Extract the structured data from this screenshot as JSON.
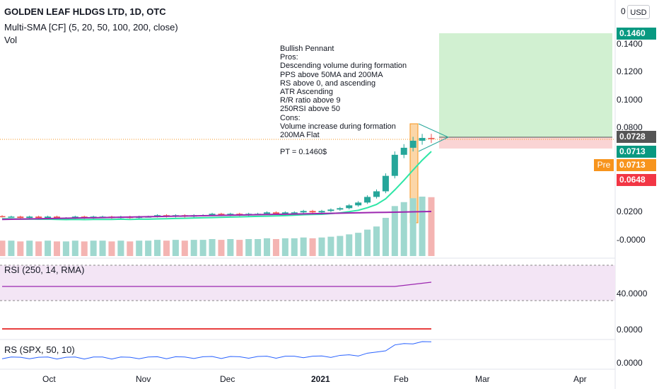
{
  "legend": {
    "title": "GOLDEN LEAF HLDGS LTD, 1D, OTC",
    "indicator": "Multi-SMA [CF] (5, 20, 50, 100, 200, close)",
    "volume": "Vol"
  },
  "panes": {
    "rsi_label": "RSI (250, 14, RMA)",
    "rs_label": "RS (SPX, 50, 10)"
  },
  "currency_button": "USD",
  "price_axis": {
    "ticks": [
      "0.1400",
      "0.1200",
      "0.1000",
      "0.0800",
      "0.0200",
      "-0.0000"
    ],
    "top_label": "0",
    "rsi_ticks": [
      "40.0000",
      "0.0000"
    ],
    "rs_ticks": [
      "0.0000"
    ]
  },
  "tags": {
    "target": "0.1460",
    "entry": "0.0728",
    "last": "0.0713",
    "pre_label": "Pre",
    "pre_value": "0.0713",
    "stop": "0.0648"
  },
  "annotation": {
    "text": "Bullish Pennant\nPros:\nDescending volume during formation\nPPS above 50MA and 200MA\nRS above 0, and ascending\nATR Ascending\nR/R ratio above 9\n250RSI above 50\nCons:\nVolume increase during formation\n200MA Flat\n\nPT = 0.1460$"
  },
  "time_axis": [
    "Oct",
    "Nov",
    "Dec",
    "2021",
    "Feb",
    "Mar",
    "Apr"
  ],
  "colors": {
    "up": "#26a69a",
    "down": "#ef5350",
    "target_zone": "#d1f0d1",
    "stop_zone": "#fad4d4",
    "rsi_band": "#f3e5f5",
    "rsi_line": "#9c27b0",
    "rs_line": "#2962ff",
    "sma_50": "#2ee6a6",
    "sma_200": "#9c27b0",
    "tag_green": "#089981",
    "tag_red": "#f23645",
    "tag_dark": "#555555",
    "pre": "#f7941d"
  },
  "chart_data": {
    "type": "candlestick",
    "symbol": "GOLDEN LEAF HLDGS LTD",
    "interval": "1D",
    "exchange": "OTC",
    "x_labels": [
      "Oct",
      "Nov",
      "Dec",
      "2021",
      "Feb",
      "Mar",
      "Apr"
    ],
    "y_ticks": [
      0.14,
      0.12,
      0.1,
      0.08,
      0.02,
      0.0
    ],
    "approx_close_series": [
      0.016,
      0.016,
      0.015,
      0.016,
      0.015,
      0.016,
      0.015,
      0.015,
      0.016,
      0.015,
      0.016,
      0.016,
      0.015,
      0.016,
      0.015,
      0.016,
      0.016,
      0.017,
      0.016,
      0.017,
      0.016,
      0.017,
      0.017,
      0.018,
      0.017,
      0.018,
      0.017,
      0.018,
      0.018,
      0.019,
      0.018,
      0.019,
      0.019,
      0.02,
      0.019,
      0.02,
      0.021,
      0.022,
      0.024,
      0.026,
      0.03,
      0.034,
      0.045,
      0.06,
      0.065,
      0.07,
      0.072,
      0.0713
    ],
    "position": {
      "entry": 0.0728,
      "target": 0.146,
      "stop": 0.0648
    },
    "series": [
      {
        "name": "Multi-SMA [CF] (5, 20, 50, 100, 200, close)"
      },
      {
        "name": "Vol"
      },
      {
        "name": "RSI (250, 14, RMA)"
      },
      {
        "name": "RS (SPX, 50, 10)"
      }
    ]
  }
}
